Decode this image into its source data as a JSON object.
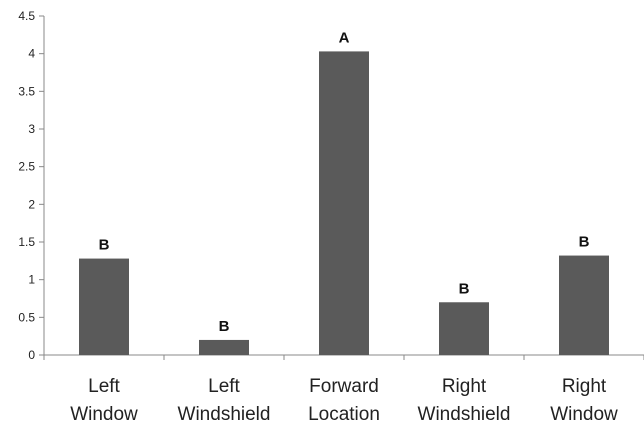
{
  "chart_data": {
    "type": "bar",
    "categories": [
      [
        "Left",
        "Window"
      ],
      [
        "Left",
        "Windshield"
      ],
      [
        "Forward",
        "Location"
      ],
      [
        "Right",
        "Windshield"
      ],
      [
        "Right",
        "Window"
      ]
    ],
    "values": [
      1.28,
      0.2,
      4.03,
      0.7,
      1.32
    ],
    "data_labels": [
      "B",
      "B",
      "A",
      "B",
      "B"
    ],
    "title": "",
    "xlabel": "",
    "ylabel": "",
    "ylim": [
      0,
      4.5
    ],
    "yticks": [
      "0",
      "0.5",
      "1",
      "1.5",
      "2",
      "2.5",
      "3",
      "3.5",
      "4",
      "4.5"
    ],
    "grid": false,
    "bar_color": "#5a5a5a",
    "axis_color": "#888888"
  }
}
